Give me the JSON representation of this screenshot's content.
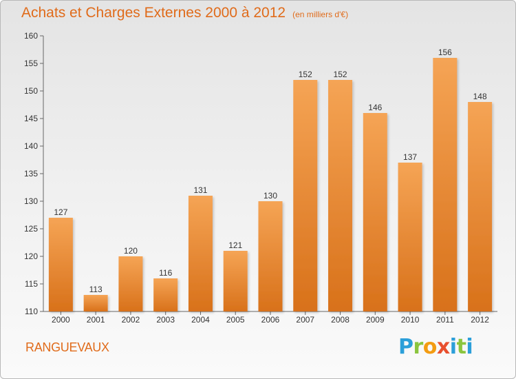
{
  "header": {
    "title": "Achats et Charges Externes 2000 à 2012",
    "unit": "(en milliers d'€)"
  },
  "footer": {
    "commune": "RANGUEVAUX",
    "brand": [
      "P",
      "r",
      "o",
      "x",
      "i",
      "t",
      "i"
    ]
  },
  "colors": {
    "title": "#e06b1a",
    "bar_top": "#f5a455",
    "bar_bottom": "#d8711a"
  },
  "chart_data": {
    "type": "bar",
    "categories": [
      "2000",
      "2001",
      "2002",
      "2003",
      "2004",
      "2005",
      "2006",
      "2007",
      "2008",
      "2009",
      "2010",
      "2011",
      "2012"
    ],
    "values": [
      127,
      113,
      120,
      116,
      131,
      121,
      130,
      152,
      152,
      146,
      137,
      156,
      148
    ],
    "title": "Achats et Charges Externes 2000 à 2012",
    "subtitle": "(en milliers d'€)",
    "xlabel": "",
    "ylabel": "",
    "ylim": [
      110,
      160
    ],
    "yticks": [
      110,
      115,
      120,
      125,
      130,
      135,
      140,
      145,
      150,
      155,
      160
    ],
    "grid": false,
    "legend": "none"
  }
}
